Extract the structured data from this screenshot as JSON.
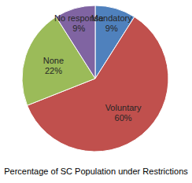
{
  "chart_data": {
    "type": "pie",
    "title": "Percentage of SC Population under Restrictions",
    "categories": [
      "Mandatory",
      "Voluntary",
      "None",
      "No response"
    ],
    "values": [
      9,
      60,
      22,
      9
    ],
    "value_labels": [
      "9%",
      "60%",
      "22%",
      "9%"
    ],
    "colors": [
      "#4f81bd",
      "#c0504d",
      "#9bbb59",
      "#8064a2"
    ],
    "data_labels": true
  }
}
